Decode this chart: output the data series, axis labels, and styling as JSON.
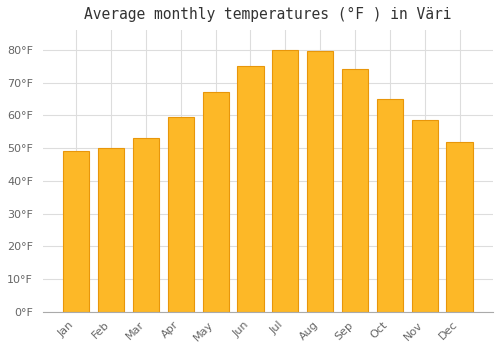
{
  "title": "Average monthly temperatures (°F ) in Väri",
  "months": [
    "Jan",
    "Feb",
    "Mar",
    "Apr",
    "May",
    "Jun",
    "Jul",
    "Aug",
    "Sep",
    "Oct",
    "Nov",
    "Dec"
  ],
  "values": [
    49,
    50,
    53,
    59.5,
    67,
    75,
    80,
    79.5,
    74,
    65,
    58.5,
    52
  ],
  "bar_color": "#FDB827",
  "bar_edge_color": "#E8960A",
  "background_color": "#FFFFFF",
  "grid_color": "#DDDDDD",
  "yticks": [
    0,
    10,
    20,
    30,
    40,
    50,
    60,
    70,
    80
  ],
  "ylim": [
    0,
    86
  ],
  "title_fontsize": 10.5,
  "tick_fontsize": 8,
  "axis_label_color": "#666666"
}
